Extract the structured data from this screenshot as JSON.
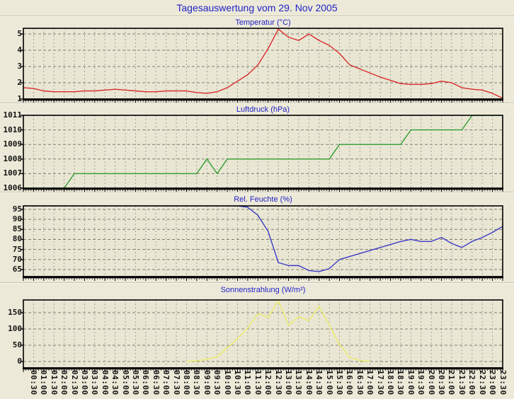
{
  "page": {
    "title": "Tagesauswertung vom 29. Nov 2005",
    "title_color": "#2323c8",
    "background_color": "#ece9d8",
    "plot_background_color": "#e9e6d4"
  },
  "x_labels": [
    "00:30",
    "01:00",
    "01:30",
    "02:00",
    "02:30",
    "03:00",
    "03:30",
    "04:00",
    "04:30",
    "05:00",
    "05:30",
    "06:00",
    "06:30",
    "07:00",
    "07:30",
    "08:00",
    "08:30",
    "09:00",
    "09:30",
    "10:00",
    "10:30",
    "11:00",
    "11:30",
    "12:00",
    "12:30",
    "13:00",
    "13:30",
    "14:00",
    "14:30",
    "15:00",
    "15:30",
    "16:00",
    "16:30",
    "17:00",
    "17:30",
    "18:00",
    "18:30",
    "19:00",
    "19:30",
    "20:00",
    "20:30",
    "21:00",
    "21:30",
    "22:00",
    "22:30",
    "23:00",
    "23:30"
  ],
  "chart_data": [
    {
      "type": "line",
      "name": "temperature",
      "title": "Temperatur (°C)",
      "color": "#d92b2b",
      "ylim": [
        1,
        5.35
      ],
      "yticks": [
        1,
        2,
        3,
        4,
        5
      ],
      "grid": true,
      "x_start_time": "00:00",
      "x_interval_minutes": 30,
      "values": [
        1.7,
        1.65,
        1.5,
        1.45,
        1.45,
        1.45,
        1.5,
        1.5,
        1.55,
        1.6,
        1.55,
        1.5,
        1.45,
        1.45,
        1.5,
        1.5,
        1.5,
        1.4,
        1.35,
        1.45,
        1.7,
        2.1,
        2.5,
        3.1,
        4.1,
        5.3,
        4.8,
        4.6,
        5.0,
        4.6,
        4.3,
        3.8,
        3.1,
        2.85,
        2.6,
        2.35,
        2.15,
        1.95,
        1.9,
        1.9,
        1.95,
        2.1,
        2.0,
        1.7,
        1.6,
        1.55,
        1.35,
        1.05
      ]
    },
    {
      "type": "line",
      "name": "pressure",
      "title": "Luftdruck (hPa)",
      "color": "#2f9e2f",
      "ylim": [
        1006,
        1011
      ],
      "yticks": [
        1006,
        1007,
        1008,
        1009,
        1010,
        1011
      ],
      "grid": true,
      "x_start_time": "00:00",
      "x_interval_minutes": 30,
      "values": [
        1006,
        1006,
        1006,
        1006,
        1006,
        1007,
        1007,
        1007,
        1007,
        1007,
        1007,
        1007,
        1007,
        1007,
        1007,
        1007,
        1007,
        1007,
        1008,
        1007,
        1008,
        1008,
        1008,
        1008,
        1008,
        1008,
        1008,
        1008,
        1008,
        1008,
        1008,
        1009,
        1009,
        1009,
        1009,
        1009,
        1009,
        1009,
        1010,
        1010,
        1010,
        1010,
        1010,
        1010,
        1011,
        1011,
        1011,
        1011
      ]
    },
    {
      "type": "line",
      "name": "relative-humidity",
      "title": "Rel. Feuchte (%)",
      "color": "#3c3cc8",
      "ylim": [
        61.5,
        96.7
      ],
      "yticks": [
        65,
        70,
        75,
        80,
        85,
        90,
        95
      ],
      "grid": true,
      "x_start_time": "00:00",
      "x_interval_minutes": 30,
      "values": [
        96.7,
        96.7,
        96.7,
        96.7,
        96.7,
        96.7,
        96.7,
        96.7,
        96.7,
        96.7,
        96.7,
        96.7,
        96.7,
        96.7,
        96.7,
        96.7,
        96.7,
        96.7,
        96.7,
        96.7,
        96.7,
        96.7,
        96,
        92,
        84,
        68.5,
        67,
        67,
        64.5,
        64,
        65.5,
        70,
        71.5,
        73,
        74.5,
        76,
        77.5,
        79,
        80,
        79,
        79,
        81,
        78,
        76,
        79,
        81,
        83.5,
        86.5
      ]
    },
    {
      "type": "line",
      "name": "solar-radiation",
      "title": "Sonnenstrahlung (W/m²)",
      "color": "#ecec66",
      "ylim": [
        -19.5,
        189
      ],
      "yticks": [
        0,
        50,
        100,
        150
      ],
      "grid": true,
      "x_start_time": "00:00",
      "x_interval_minutes": 30,
      "values": [
        null,
        null,
        null,
        null,
        null,
        null,
        null,
        null,
        null,
        null,
        null,
        null,
        null,
        null,
        null,
        null,
        0,
        2,
        7,
        14,
        42,
        70,
        103,
        147,
        135,
        187,
        112,
        138,
        125,
        170,
        112,
        52,
        13,
        3,
        0,
        null,
        null,
        null,
        null,
        null,
        null,
        null,
        null,
        null,
        null,
        null,
        null,
        null
      ]
    }
  ]
}
